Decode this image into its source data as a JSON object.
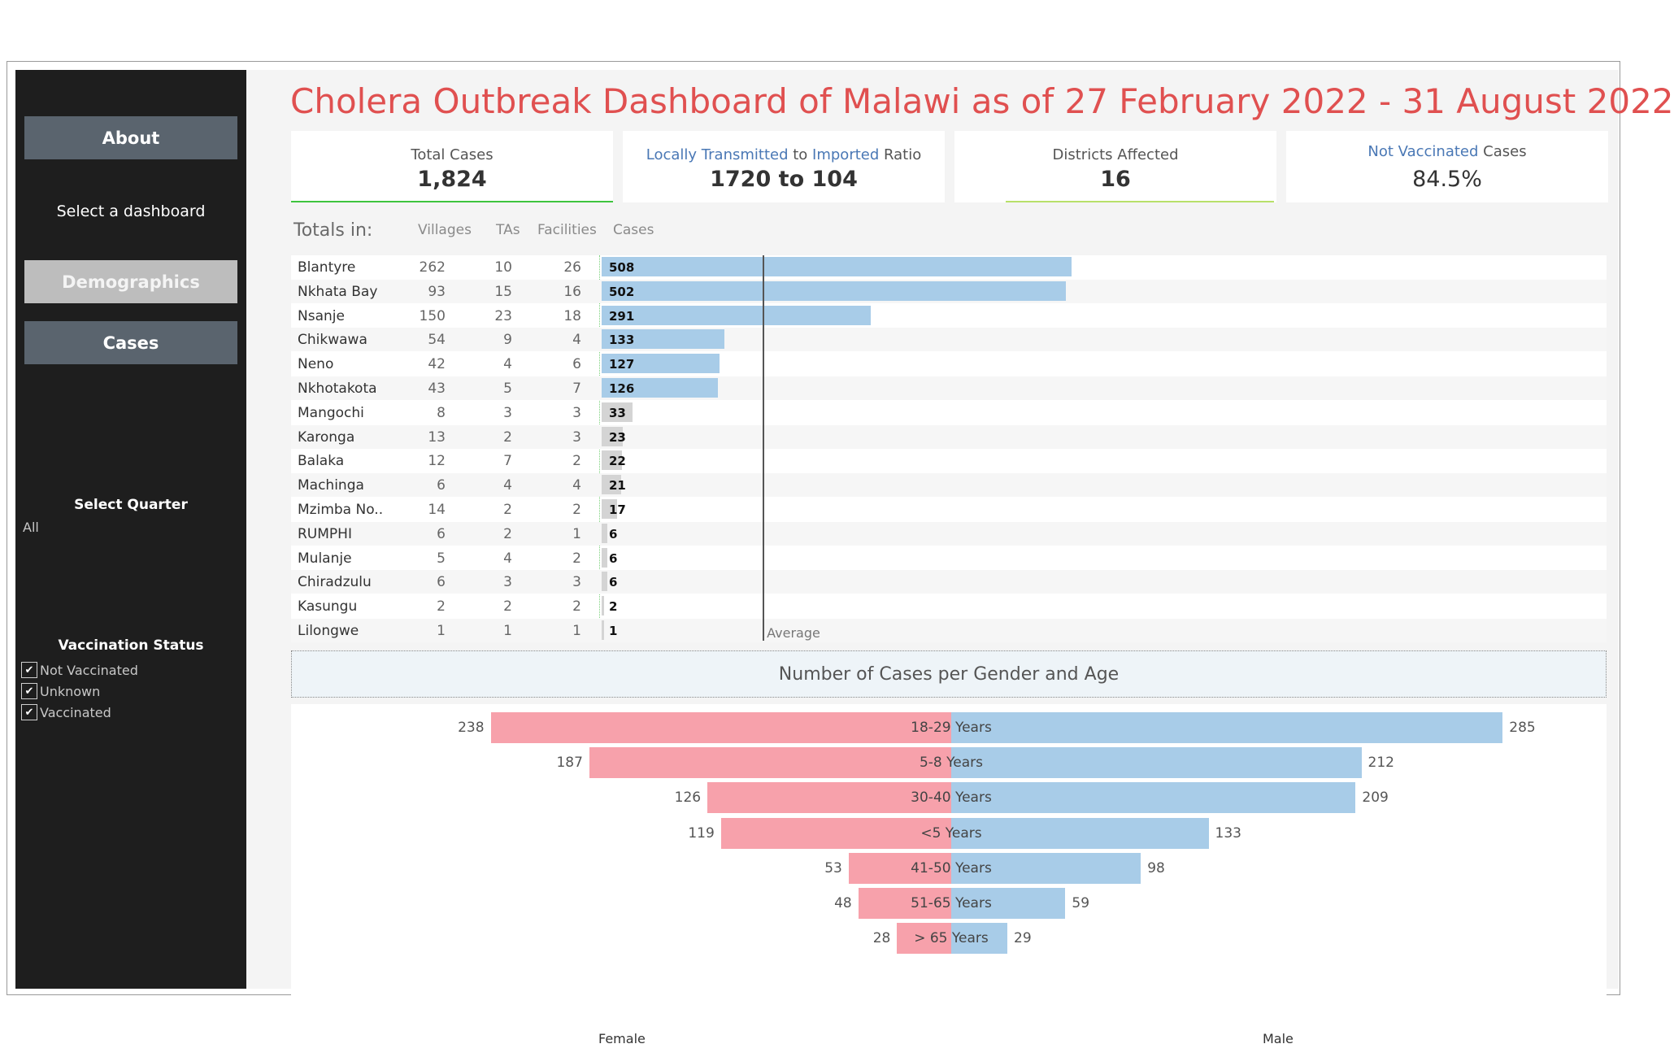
{
  "dashboard_title": "Cholera Outbreak Dashboard of Malawi as of 27 February 2022 - 31 August 2022",
  "sidebar": {
    "about_label": "About",
    "select_dashboard": "Select a dashboard",
    "demographics_label": "Demographics",
    "cases_label": "Cases",
    "select_quarter_title": "Select Quarter",
    "quarter_value": "All",
    "vaccination_title": "Vaccination Status",
    "vaccination_options": [
      {
        "label": "Not Vaccinated",
        "checked": true
      },
      {
        "label": "Unknown",
        "checked": true
      },
      {
        "label": "Vaccinated",
        "checked": true
      }
    ]
  },
  "kpis": {
    "total_cases": {
      "label": "Total Cases",
      "value": "1,824"
    },
    "ratio": {
      "label_a": "Locally Transmitted",
      "label_b": " to ",
      "label_c": "Imported",
      "label_d": " Ratio",
      "value": "1720 to 104"
    },
    "districts": {
      "label": "Districts Affected",
      "value": "16"
    },
    "not_vaccinated": {
      "label_a": "Not Vaccinated",
      "label_b": " Cases",
      "value": "84.5%"
    }
  },
  "totals": {
    "prefix": "Totals in:",
    "col_villages": "Villages",
    "col_tas": "TAs",
    "col_facilities": "Facilities",
    "col_cases": "Cases",
    "average_label": "Average",
    "average_value": 114,
    "highlight_color": "#a8cce8",
    "normal_color": "#d4d4d4",
    "rows": [
      {
        "district": "Blantyre",
        "villages": 262,
        "tas": 10,
        "facilities": 26,
        "cases": 508,
        "highlight": true
      },
      {
        "district": "Nkhata Bay",
        "villages": 93,
        "tas": 15,
        "facilities": 16,
        "cases": 502,
        "highlight": true
      },
      {
        "district": "Nsanje",
        "villages": 150,
        "tas": 23,
        "facilities": 18,
        "cases": 291,
        "highlight": true
      },
      {
        "district": "Chikwawa",
        "villages": 54,
        "tas": 9,
        "facilities": 4,
        "cases": 133,
        "highlight": true
      },
      {
        "district": "Neno",
        "villages": 42,
        "tas": 4,
        "facilities": 6,
        "cases": 127,
        "highlight": true
      },
      {
        "district": "Nkhotakota",
        "villages": 43,
        "tas": 5,
        "facilities": 7,
        "cases": 126,
        "highlight": true
      },
      {
        "district": "Mangochi",
        "villages": 8,
        "tas": 3,
        "facilities": 3,
        "cases": 33,
        "highlight": false
      },
      {
        "district": "Karonga",
        "villages": 13,
        "tas": 2,
        "facilities": 3,
        "cases": 23,
        "highlight": false
      },
      {
        "district": "Balaka",
        "villages": 12,
        "tas": 7,
        "facilities": 2,
        "cases": 22,
        "highlight": false
      },
      {
        "district": "Machinga",
        "villages": 6,
        "tas": 4,
        "facilities": 4,
        "cases": 21,
        "highlight": false
      },
      {
        "district": "Mzimba No..",
        "villages": 14,
        "tas": 2,
        "facilities": 2,
        "cases": 17,
        "highlight": false
      },
      {
        "district": "RUMPHI",
        "villages": 6,
        "tas": 2,
        "facilities": 1,
        "cases": 6,
        "highlight": false
      },
      {
        "district": "Mulanje",
        "villages": 5,
        "tas": 4,
        "facilities": 2,
        "cases": 6,
        "highlight": false
      },
      {
        "district": "Chiradzulu",
        "villages": 6,
        "tas": 3,
        "facilities": 3,
        "cases": 6,
        "highlight": false
      },
      {
        "district": "Kasungu",
        "villages": 2,
        "tas": 2,
        "facilities": 2,
        "cases": 2,
        "highlight": false
      },
      {
        "district": "Lilongwe",
        "villages": 1,
        "tas": 1,
        "facilities": 1,
        "cases": 1,
        "highlight": false
      }
    ]
  },
  "chart_data": {
    "type": "bar",
    "title": "Number of Cases per Gender and Age",
    "female_label": "Female",
    "male_label": "Male",
    "female_color": "#f7a1ab",
    "male_color": "#a8cce8",
    "categories": [
      "18-29 Years",
      "5-8 Years",
      "30-40 Years",
      "<5 Years",
      "41-50 Years",
      "51-65 Years",
      "> 65 Years"
    ],
    "series": [
      {
        "name": "Female",
        "values": [
          238,
          187,
          126,
          119,
          53,
          48,
          28
        ]
      },
      {
        "name": "Male",
        "values": [
          285,
          212,
          209,
          133,
          98,
          59,
          29
        ]
      }
    ]
  }
}
